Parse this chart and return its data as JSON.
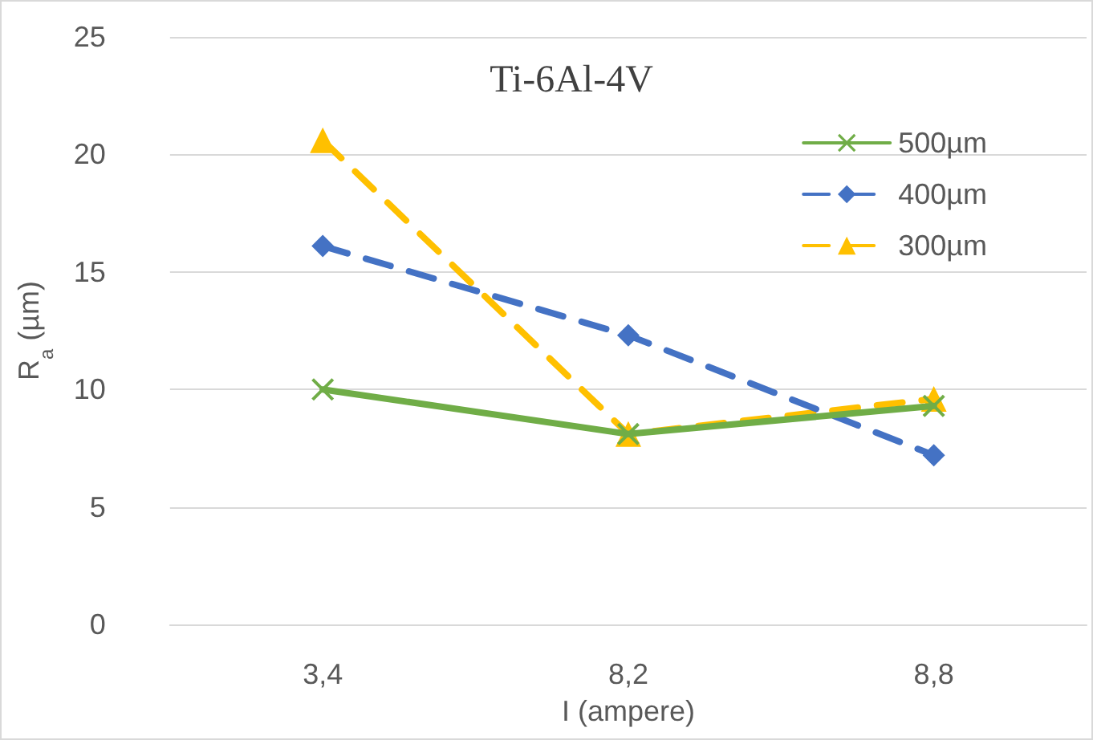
{
  "chart_data": {
    "type": "line",
    "title": "Ti-6Al-4V",
    "xlabel": "I (ampere)",
    "ylabel": "R$_{a}$ (µm)",
    "categories": [
      "3,4",
      "8,2",
      "8,8"
    ],
    "series": [
      {
        "name": "500µm",
        "color": "#70ad47",
        "values": [
          10,
          8.1,
          9.3
        ],
        "marker": "cross",
        "line_style": "solid"
      },
      {
        "name": "400µm",
        "color": "#4472c4",
        "values": [
          16.1,
          12.3,
          7.2
        ],
        "marker": "diamond",
        "line_style": "dashed"
      },
      {
        "name": "300µm",
        "color": "#ffc000",
        "values": [
          20.6,
          8.1,
          9.6
        ],
        "marker": "triangle",
        "line_style": "dashed"
      }
    ],
    "ylim": [
      0,
      25
    ],
    "yticks": [
      0,
      5,
      10,
      15,
      20,
      25
    ],
    "grid": "y",
    "legend": "top right"
  }
}
